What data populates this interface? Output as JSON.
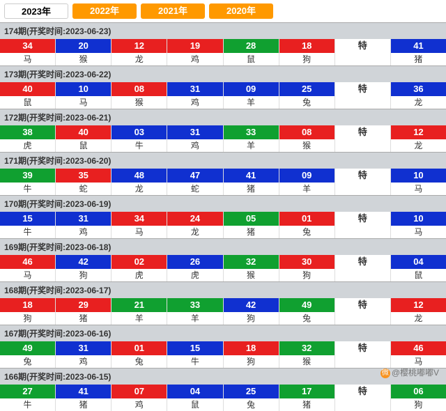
{
  "colors": {
    "red": "#e82020",
    "blue": "#1030d0",
    "green": "#10a030",
    "white": "#ffffff",
    "tab_bg": "#ff9900",
    "header_bg": "#d0d4d8"
  },
  "years": [
    {
      "label": "2023年",
      "active": true
    },
    {
      "label": "2022年",
      "active": false
    },
    {
      "label": "2021年",
      "active": false
    },
    {
      "label": "2020年",
      "active": false
    }
  ],
  "special_label": "特",
  "watermark": "@樱桃嘟嘟V",
  "periods": [
    {
      "title": "174期(开奖时间:2023-06-23)",
      "cells": [
        {
          "n": "34",
          "c": "red",
          "l": "马"
        },
        {
          "n": "20",
          "c": "blue",
          "l": "猴"
        },
        {
          "n": "12",
          "c": "red",
          "l": "龙"
        },
        {
          "n": "19",
          "c": "red",
          "l": "鸡"
        },
        {
          "n": "28",
          "c": "green",
          "l": "鼠"
        },
        {
          "n": "18",
          "c": "red",
          "l": "狗"
        },
        {
          "n": "特",
          "c": "white",
          "l": ""
        },
        {
          "n": "41",
          "c": "blue",
          "l": "猪"
        }
      ]
    },
    {
      "title": "173期(开奖时间:2023-06-22)",
      "cells": [
        {
          "n": "40",
          "c": "red",
          "l": "鼠"
        },
        {
          "n": "10",
          "c": "blue",
          "l": "马"
        },
        {
          "n": "08",
          "c": "red",
          "l": "猴"
        },
        {
          "n": "31",
          "c": "blue",
          "l": "鸡"
        },
        {
          "n": "09",
          "c": "blue",
          "l": "羊"
        },
        {
          "n": "25",
          "c": "blue",
          "l": "兔"
        },
        {
          "n": "特",
          "c": "white",
          "l": ""
        },
        {
          "n": "36",
          "c": "blue",
          "l": "龙"
        }
      ]
    },
    {
      "title": "172期(开奖时间:2023-06-21)",
      "cells": [
        {
          "n": "38",
          "c": "green",
          "l": "虎"
        },
        {
          "n": "40",
          "c": "red",
          "l": "鼠"
        },
        {
          "n": "03",
          "c": "blue",
          "l": "牛"
        },
        {
          "n": "31",
          "c": "blue",
          "l": "鸡"
        },
        {
          "n": "33",
          "c": "green",
          "l": "羊"
        },
        {
          "n": "08",
          "c": "red",
          "l": "猴"
        },
        {
          "n": "特",
          "c": "white",
          "l": ""
        },
        {
          "n": "12",
          "c": "red",
          "l": "龙"
        }
      ]
    },
    {
      "title": "171期(开奖时间:2023-06-20)",
      "cells": [
        {
          "n": "39",
          "c": "green",
          "l": "牛"
        },
        {
          "n": "35",
          "c": "red",
          "l": "蛇"
        },
        {
          "n": "48",
          "c": "blue",
          "l": "龙"
        },
        {
          "n": "47",
          "c": "blue",
          "l": "蛇"
        },
        {
          "n": "41",
          "c": "blue",
          "l": "猪"
        },
        {
          "n": "09",
          "c": "blue",
          "l": "羊"
        },
        {
          "n": "特",
          "c": "white",
          "l": ""
        },
        {
          "n": "10",
          "c": "blue",
          "l": "马"
        }
      ]
    },
    {
      "title": "170期(开奖时间:2023-06-19)",
      "cells": [
        {
          "n": "15",
          "c": "blue",
          "l": "牛"
        },
        {
          "n": "31",
          "c": "blue",
          "l": "鸡"
        },
        {
          "n": "34",
          "c": "red",
          "l": "马"
        },
        {
          "n": "24",
          "c": "red",
          "l": "龙"
        },
        {
          "n": "05",
          "c": "green",
          "l": "猪"
        },
        {
          "n": "01",
          "c": "red",
          "l": "兔"
        },
        {
          "n": "特",
          "c": "white",
          "l": ""
        },
        {
          "n": "10",
          "c": "blue",
          "l": "马"
        }
      ]
    },
    {
      "title": "169期(开奖时间:2023-06-18)",
      "cells": [
        {
          "n": "46",
          "c": "red",
          "l": "马"
        },
        {
          "n": "42",
          "c": "blue",
          "l": "狗"
        },
        {
          "n": "02",
          "c": "red",
          "l": "虎"
        },
        {
          "n": "26",
          "c": "blue",
          "l": "虎"
        },
        {
          "n": "32",
          "c": "green",
          "l": "猴"
        },
        {
          "n": "30",
          "c": "red",
          "l": "狗"
        },
        {
          "n": "特",
          "c": "white",
          "l": ""
        },
        {
          "n": "04",
          "c": "blue",
          "l": "鼠"
        }
      ]
    },
    {
      "title": "168期(开奖时间:2023-06-17)",
      "cells": [
        {
          "n": "18",
          "c": "red",
          "l": "狗"
        },
        {
          "n": "29",
          "c": "red",
          "l": "猪"
        },
        {
          "n": "21",
          "c": "green",
          "l": "羊"
        },
        {
          "n": "33",
          "c": "green",
          "l": "羊"
        },
        {
          "n": "42",
          "c": "blue",
          "l": "狗"
        },
        {
          "n": "49",
          "c": "green",
          "l": "兔"
        },
        {
          "n": "特",
          "c": "white",
          "l": ""
        },
        {
          "n": "12",
          "c": "red",
          "l": "龙"
        }
      ]
    },
    {
      "title": "167期(开奖时间:2023-06-16)",
      "cells": [
        {
          "n": "49",
          "c": "green",
          "l": "兔"
        },
        {
          "n": "31",
          "c": "blue",
          "l": "鸡"
        },
        {
          "n": "01",
          "c": "red",
          "l": "兔"
        },
        {
          "n": "15",
          "c": "blue",
          "l": "牛"
        },
        {
          "n": "18",
          "c": "red",
          "l": "狗"
        },
        {
          "n": "32",
          "c": "green",
          "l": "猴"
        },
        {
          "n": "特",
          "c": "white",
          "l": ""
        },
        {
          "n": "46",
          "c": "red",
          "l": "马"
        }
      ]
    },
    {
      "title": "166期(开奖时间:2023-06-15)",
      "cells": [
        {
          "n": "27",
          "c": "green",
          "l": "牛"
        },
        {
          "n": "41",
          "c": "blue",
          "l": "猪"
        },
        {
          "n": "07",
          "c": "red",
          "l": "鸡"
        },
        {
          "n": "04",
          "c": "blue",
          "l": "鼠"
        },
        {
          "n": "25",
          "c": "blue",
          "l": "兔"
        },
        {
          "n": "17",
          "c": "green",
          "l": "猪"
        },
        {
          "n": "特",
          "c": "white",
          "l": ""
        },
        {
          "n": "06",
          "c": "green",
          "l": "狗"
        }
      ]
    }
  ]
}
